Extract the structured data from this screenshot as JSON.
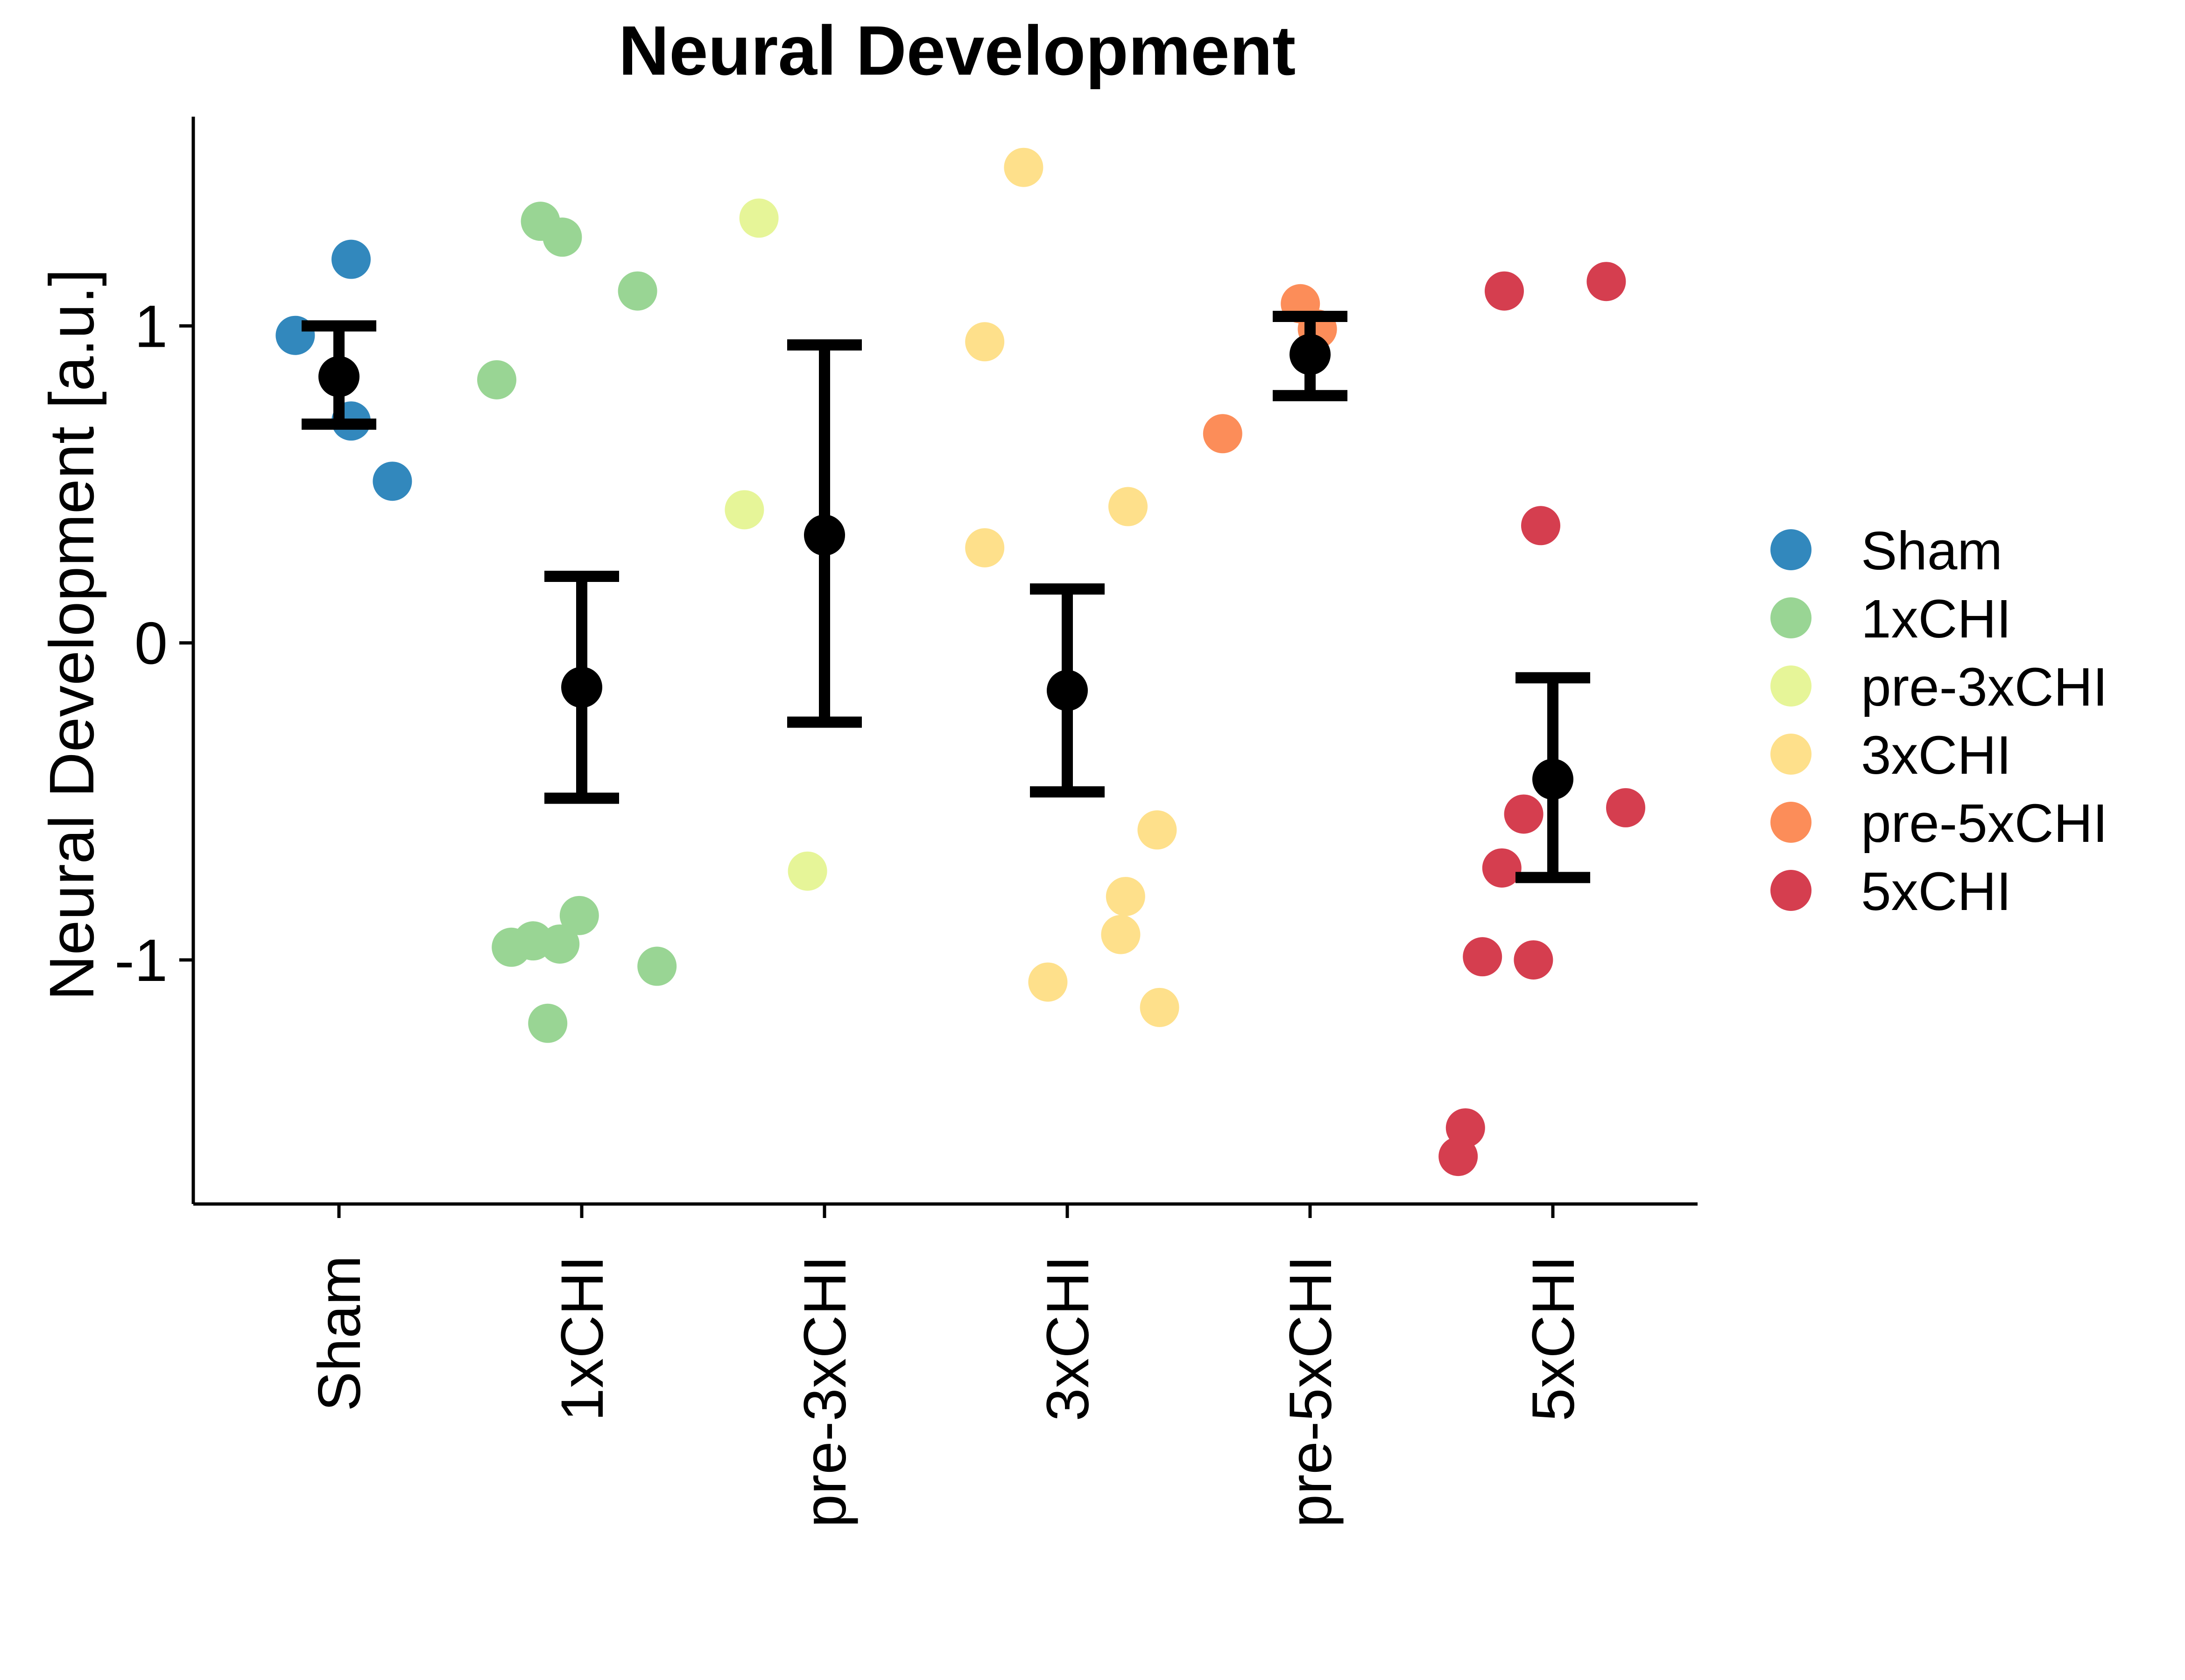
{
  "chart_data": {
    "type": "scatter",
    "title": "Neural Development",
    "xlabel": "",
    "ylabel": "Neural Development [a.u.]",
    "categories": [
      "Sham",
      "1xCHI",
      "pre-3xCHI",
      "3xCHI",
      "pre-5xCHI",
      "5xCHI"
    ],
    "ylim": [
      -1.77,
      1.66
    ],
    "yticks": [
      1,
      0,
      -1
    ],
    "ytick_labels": [
      "1",
      "0",
      "-1"
    ],
    "grid": false,
    "legend": {
      "position": "right",
      "entries": [
        "Sham",
        "1xCHI",
        "pre-3xCHI",
        "3xCHI",
        "pre-5xCHI",
        "5xCHI"
      ]
    },
    "colors": {
      "Sham": "#3288bd",
      "1xCHI": "#99d594",
      "pre-3xCHI": "#e6f598",
      "3xCHI": "#fee08b",
      "pre-5xCHI": "#fc8d59",
      "5xCHI": "#d53e4f",
      "summary": "#000000"
    },
    "series": [
      {
        "name": "Sham",
        "points": [
          {
            "x": -0.18,
            "y": 0.97
          },
          {
            "x": 0.05,
            "y": 1.21
          },
          {
            "x": 0.05,
            "y": 0.7
          },
          {
            "x": 0.22,
            "y": 0.51
          }
        ],
        "mean": 0.84,
        "err_low": 0.69,
        "err_high": 1.0
      },
      {
        "name": "1xCHI",
        "points": [
          {
            "x": -0.35,
            "y": 0.83
          },
          {
            "x": -0.17,
            "y": 1.33
          },
          {
            "x": -0.08,
            "y": 1.28
          },
          {
            "x": 0.23,
            "y": 1.11
          },
          {
            "x": -0.29,
            "y": -0.96
          },
          {
            "x": -0.2,
            "y": -0.94
          },
          {
            "x": -0.09,
            "y": -0.95
          },
          {
            "x": -0.01,
            "y": -0.86
          },
          {
            "x": -0.14,
            "y": -1.2
          },
          {
            "x": 0.31,
            "y": -1.02
          }
        ],
        "mean": -0.14,
        "err_low": -0.49,
        "err_high": 0.21
      },
      {
        "name": "pre-3xCHI",
        "points": [
          {
            "x": -0.27,
            "y": 1.34
          },
          {
            "x": -0.33,
            "y": 0.42
          },
          {
            "x": -0.07,
            "y": -0.72
          }
        ],
        "mean": 0.34,
        "err_low": -0.25,
        "err_high": 0.94
      },
      {
        "name": "3xCHI",
        "points": [
          {
            "x": -0.18,
            "y": 1.5
          },
          {
            "x": -0.34,
            "y": 0.95
          },
          {
            "x": -0.34,
            "y": 0.3
          },
          {
            "x": 0.25,
            "y": 0.43
          },
          {
            "x": 0.37,
            "y": -0.59
          },
          {
            "x": 0.24,
            "y": -0.8
          },
          {
            "x": 0.22,
            "y": -0.92
          },
          {
            "x": -0.08,
            "y": -1.07
          },
          {
            "x": 0.38,
            "y": -1.15
          }
        ],
        "mean": -0.15,
        "err_low": -0.47,
        "err_high": 0.17
      },
      {
        "name": "pre-5xCHI",
        "points": [
          {
            "x": -0.04,
            "y": 1.07
          },
          {
            "x": 0.03,
            "y": 0.99
          },
          {
            "x": -0.36,
            "y": 0.66
          }
        ],
        "mean": 0.91,
        "err_low": 0.78,
        "err_high": 1.03
      },
      {
        "name": "5xCHI",
        "points": [
          {
            "x": -0.2,
            "y": 1.11
          },
          {
            "x": 0.22,
            "y": 1.14
          },
          {
            "x": -0.05,
            "y": 0.37
          },
          {
            "x": -0.12,
            "y": -0.54
          },
          {
            "x": 0.3,
            "y": -0.52
          },
          {
            "x": -0.21,
            "y": -0.71
          },
          {
            "x": -0.29,
            "y": -0.99
          },
          {
            "x": -0.08,
            "y": -1.0
          },
          {
            "x": -0.36,
            "y": -1.53
          },
          {
            "x": -0.39,
            "y": -1.62
          }
        ],
        "mean": -0.43,
        "err_low": -0.74,
        "err_high": -0.11
      }
    ]
  }
}
